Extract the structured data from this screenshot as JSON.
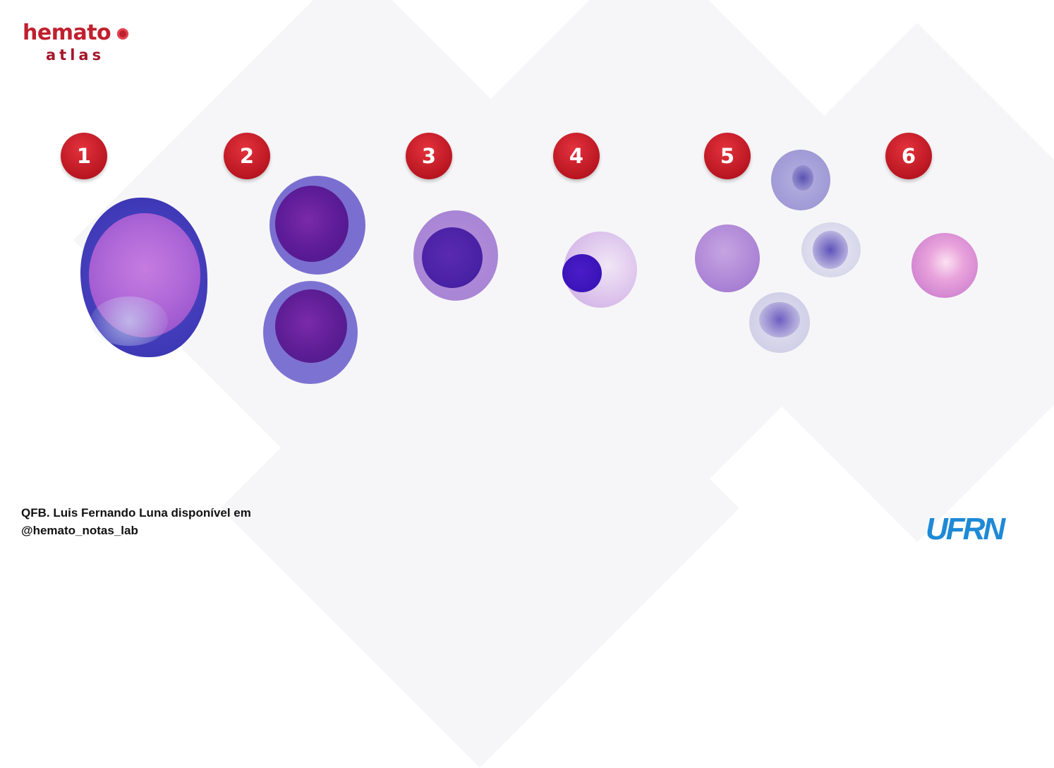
{
  "logo": {
    "top_text": "hemato",
    "bottom_text": "atlas"
  },
  "badges": [
    "1",
    "2",
    "3",
    "4",
    "5",
    "6"
  ],
  "credit": {
    "line1": "QFB. Luis Fernando Luna disponível em",
    "line2": "@hemato_notas_lab"
  },
  "institution_logo": "UFRN",
  "colors": {
    "brand_red": "#c0202e",
    "badge_red": "#cf1f2a",
    "ufrn_blue": "#1e8ad6"
  }
}
